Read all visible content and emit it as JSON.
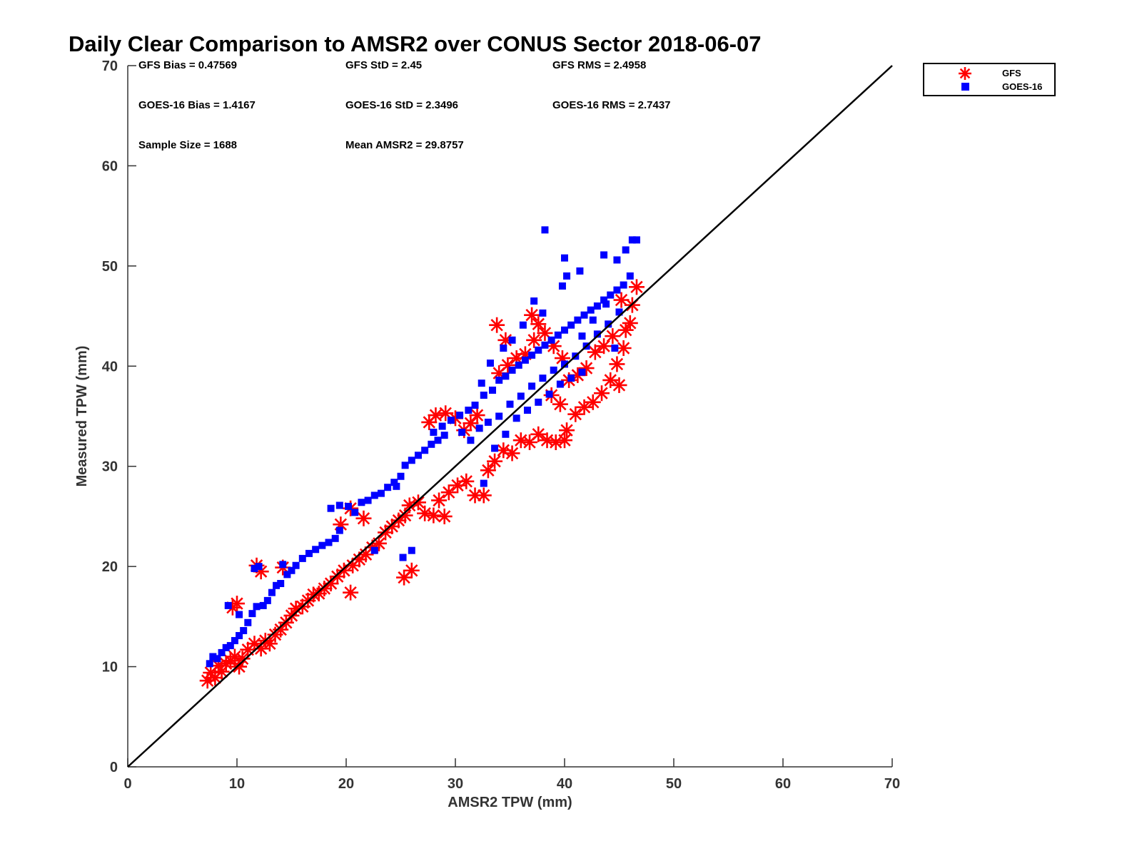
{
  "chart_data": {
    "type": "scatter",
    "title": "Daily Clear Comparison to AMSR2 over CONUS Sector 2018-06-07",
    "xlabel": "AMSR2 TPW (mm)",
    "ylabel": "Measured TPW (mm)",
    "xlim": [
      0,
      70
    ],
    "ylim": [
      0,
      70
    ],
    "xticks": [
      "0",
      "10",
      "20",
      "30",
      "40",
      "50",
      "60",
      "70"
    ],
    "yticks": [
      "0",
      "10",
      "20",
      "30",
      "40",
      "50",
      "60",
      "70"
    ],
    "grid": false,
    "legend_position": "outside-top-right",
    "reference_line": {
      "x": [
        0,
        70
      ],
      "y": [
        0,
        70
      ],
      "color": "#000000"
    },
    "stats": [
      {
        "text": "GFS Bias = 0.47569"
      },
      {
        "text": "GFS StD = 2.45"
      },
      {
        "text": "GFS RMS = 2.4958"
      },
      {
        "text": "GOES-16 Bias = 1.4167"
      },
      {
        "text": "GOES-16 StD = 2.3496"
      },
      {
        "text": "GOES-16 RMS = 2.7437"
      },
      {
        "text": "Sample Size = 1688"
      },
      {
        "text": "Mean AMSR2 = 29.8757"
      }
    ],
    "series": [
      {
        "name": "GFS",
        "marker": "asterisk",
        "color": "#ff0000",
        "points": [
          [
            7.3,
            8.6
          ],
          [
            7.6,
            9.4
          ],
          [
            8.0,
            8.9
          ],
          [
            8.3,
            10.1
          ],
          [
            8.6,
            9.5
          ],
          [
            9.0,
            10.3
          ],
          [
            9.4,
            10.6
          ],
          [
            9.8,
            11.0
          ],
          [
            10.2,
            10.0
          ],
          [
            10.5,
            10.8
          ],
          [
            10.0,
            16.3
          ],
          [
            9.6,
            15.9
          ],
          [
            11.0,
            11.7
          ],
          [
            11.6,
            12.3
          ],
          [
            12.2,
            11.8
          ],
          [
            12.6,
            12.6
          ],
          [
            13.0,
            12.3
          ],
          [
            13.5,
            13.2
          ],
          [
            14.0,
            13.7
          ],
          [
            14.5,
            14.4
          ],
          [
            15.0,
            15.1
          ],
          [
            15.4,
            15.8
          ],
          [
            16.0,
            16.0
          ],
          [
            16.5,
            16.6
          ],
          [
            17.0,
            17.2
          ],
          [
            17.5,
            17.3
          ],
          [
            18.0,
            17.8
          ],
          [
            18.6,
            18.3
          ],
          [
            19.2,
            19.0
          ],
          [
            19.8,
            19.6
          ],
          [
            12.2,
            19.5
          ],
          [
            11.8,
            20.1
          ],
          [
            14.2,
            19.9
          ],
          [
            20.4,
            17.4
          ],
          [
            20.6,
            20.1
          ],
          [
            21.2,
            20.7
          ],
          [
            21.8,
            21.2
          ],
          [
            22.4,
            21.9
          ],
          [
            23.0,
            22.3
          ],
          [
            23.6,
            23.4
          ],
          [
            19.5,
            24.2
          ],
          [
            20.4,
            25.8
          ],
          [
            21.6,
            24.8
          ],
          [
            24.2,
            24.0
          ],
          [
            24.8,
            24.6
          ],
          [
            25.4,
            25.1
          ],
          [
            25.3,
            18.9
          ],
          [
            26.0,
            19.6
          ],
          [
            25.8,
            26.1
          ],
          [
            26.6,
            26.4
          ],
          [
            27.2,
            25.3
          ],
          [
            28.0,
            25.1
          ],
          [
            29.0,
            25.0
          ],
          [
            28.5,
            26.6
          ],
          [
            29.4,
            27.4
          ],
          [
            30.2,
            28.1
          ],
          [
            31.0,
            28.5
          ],
          [
            31.8,
            27.1
          ],
          [
            32.6,
            27.1
          ],
          [
            33.0,
            29.6
          ],
          [
            27.6,
            34.4
          ],
          [
            28.2,
            35.1
          ],
          [
            29.1,
            35.3
          ],
          [
            30.0,
            34.8
          ],
          [
            30.8,
            33.6
          ],
          [
            31.4,
            34.3
          ],
          [
            32.0,
            35.1
          ],
          [
            33.6,
            30.5
          ],
          [
            34.4,
            31.6
          ],
          [
            35.2,
            31.3
          ],
          [
            36.0,
            32.6
          ],
          [
            36.8,
            32.4
          ],
          [
            37.6,
            33.2
          ],
          [
            38.4,
            32.6
          ],
          [
            39.2,
            32.4
          ],
          [
            40.0,
            32.6
          ],
          [
            40.2,
            33.6
          ],
          [
            41.0,
            35.2
          ],
          [
            41.8,
            35.9
          ],
          [
            42.6,
            36.4
          ],
          [
            43.4,
            37.3
          ],
          [
            44.2,
            38.6
          ],
          [
            45.0,
            38.1
          ],
          [
            44.8,
            40.2
          ],
          [
            45.4,
            41.8
          ],
          [
            45.6,
            43.6
          ],
          [
            46.0,
            44.3
          ],
          [
            46.2,
            46.1
          ],
          [
            46.6,
            47.9
          ],
          [
            45.2,
            46.6
          ],
          [
            34.0,
            39.3
          ],
          [
            34.8,
            40.1
          ],
          [
            35.6,
            40.8
          ],
          [
            36.4,
            41.2
          ],
          [
            37.2,
            42.6
          ],
          [
            37.6,
            44.2
          ],
          [
            37.0,
            45.1
          ],
          [
            38.2,
            43.3
          ],
          [
            39.0,
            42.0
          ],
          [
            39.8,
            40.8
          ],
          [
            33.8,
            44.1
          ],
          [
            34.6,
            42.6
          ],
          [
            40.4,
            38.6
          ],
          [
            41.2,
            39.1
          ],
          [
            42.0,
            39.8
          ],
          [
            42.8,
            41.4
          ],
          [
            43.6,
            42.0
          ],
          [
            44.4,
            43.0
          ],
          [
            38.8,
            37.1
          ],
          [
            39.6,
            36.2
          ]
        ]
      },
      {
        "name": "GOES-16",
        "marker": "square",
        "color": "#0000ff",
        "points": [
          [
            7.5,
            10.3
          ],
          [
            7.8,
            11.0
          ],
          [
            8.2,
            10.8
          ],
          [
            8.6,
            11.4
          ],
          [
            9.0,
            11.9
          ],
          [
            9.4,
            12.1
          ],
          [
            9.8,
            12.6
          ],
          [
            10.2,
            13.1
          ],
          [
            10.6,
            13.6
          ],
          [
            11.0,
            14.4
          ],
          [
            9.2,
            16.1
          ],
          [
            10.2,
            15.2
          ],
          [
            11.4,
            15.3
          ],
          [
            11.8,
            16.0
          ],
          [
            12.4,
            16.1
          ],
          [
            12.8,
            16.6
          ],
          [
            13.2,
            17.4
          ],
          [
            13.6,
            18.1
          ],
          [
            14.0,
            18.3
          ],
          [
            14.6,
            19.2
          ],
          [
            12.0,
            20.0
          ],
          [
            11.6,
            19.8
          ],
          [
            14.2,
            20.2
          ],
          [
            15.0,
            19.6
          ],
          [
            15.4,
            20.1
          ],
          [
            16.0,
            20.8
          ],
          [
            16.6,
            21.3
          ],
          [
            17.2,
            21.7
          ],
          [
            17.8,
            22.1
          ],
          [
            18.4,
            22.4
          ],
          [
            19.0,
            22.8
          ],
          [
            19.4,
            23.6
          ],
          [
            18.6,
            25.8
          ],
          [
            19.4,
            26.1
          ],
          [
            20.2,
            26.0
          ],
          [
            20.8,
            25.4
          ],
          [
            21.4,
            26.4
          ],
          [
            22.0,
            26.6
          ],
          [
            22.6,
            27.1
          ],
          [
            23.2,
            27.3
          ],
          [
            23.8,
            27.9
          ],
          [
            24.4,
            28.4
          ],
          [
            25.0,
            29.0
          ],
          [
            25.4,
            30.1
          ],
          [
            26.0,
            30.6
          ],
          [
            26.6,
            31.1
          ],
          [
            27.2,
            31.6
          ],
          [
            27.8,
            32.2
          ],
          [
            28.4,
            32.6
          ],
          [
            29.0,
            33.1
          ],
          [
            25.2,
            20.9
          ],
          [
            26.0,
            21.6
          ],
          [
            22.6,
            21.6
          ],
          [
            24.6,
            28.0
          ],
          [
            28.0,
            33.4
          ],
          [
            28.8,
            34.0
          ],
          [
            29.6,
            34.6
          ],
          [
            30.4,
            35.1
          ],
          [
            31.2,
            35.6
          ],
          [
            31.8,
            36.1
          ],
          [
            32.6,
            37.1
          ],
          [
            33.4,
            37.6
          ],
          [
            34.0,
            38.6
          ],
          [
            34.6,
            39.0
          ],
          [
            35.2,
            39.6
          ],
          [
            35.8,
            40.1
          ],
          [
            36.4,
            40.6
          ],
          [
            37.0,
            41.1
          ],
          [
            37.6,
            41.6
          ],
          [
            38.2,
            42.1
          ],
          [
            38.8,
            42.6
          ],
          [
            39.4,
            43.1
          ],
          [
            40.0,
            43.6
          ],
          [
            40.6,
            44.1
          ],
          [
            41.2,
            44.6
          ],
          [
            41.8,
            45.1
          ],
          [
            42.4,
            45.6
          ],
          [
            43.0,
            46.0
          ],
          [
            43.6,
            46.6
          ],
          [
            44.2,
            47.1
          ],
          [
            44.8,
            47.6
          ],
          [
            45.4,
            48.1
          ],
          [
            46.0,
            49.0
          ],
          [
            45.6,
            51.6
          ],
          [
            46.6,
            52.6
          ],
          [
            46.2,
            52.6
          ],
          [
            44.8,
            50.6
          ],
          [
            43.6,
            51.1
          ],
          [
            41.4,
            49.5
          ],
          [
            40.2,
            49.0
          ],
          [
            38.2,
            53.6
          ],
          [
            40.0,
            50.8
          ],
          [
            39.8,
            48.0
          ],
          [
            38.0,
            45.3
          ],
          [
            37.2,
            46.5
          ],
          [
            36.2,
            44.1
          ],
          [
            35.2,
            42.6
          ],
          [
            34.4,
            41.8
          ],
          [
            33.2,
            40.3
          ],
          [
            32.4,
            38.3
          ],
          [
            30.6,
            33.4
          ],
          [
            31.4,
            32.6
          ],
          [
            32.2,
            33.8
          ],
          [
            33.0,
            34.4
          ],
          [
            34.0,
            35.0
          ],
          [
            35.0,
            36.2
          ],
          [
            36.0,
            37.0
          ],
          [
            37.0,
            38.0
          ],
          [
            38.0,
            38.8
          ],
          [
            39.0,
            39.6
          ],
          [
            40.0,
            40.2
          ],
          [
            41.0,
            41.0
          ],
          [
            42.0,
            42.0
          ],
          [
            43.0,
            43.2
          ],
          [
            44.0,
            44.2
          ],
          [
            45.0,
            45.4
          ],
          [
            41.6,
            43.0
          ],
          [
            42.6,
            44.6
          ],
          [
            43.8,
            46.2
          ],
          [
            44.6,
            41.8
          ],
          [
            32.6,
            28.3
          ],
          [
            33.6,
            31.8
          ],
          [
            34.6,
            33.2
          ],
          [
            35.6,
            34.8
          ],
          [
            36.6,
            35.6
          ],
          [
            37.6,
            36.4
          ],
          [
            38.6,
            37.2
          ],
          [
            39.6,
            38.2
          ],
          [
            40.6,
            38.8
          ],
          [
            41.6,
            39.4
          ]
        ]
      }
    ]
  }
}
